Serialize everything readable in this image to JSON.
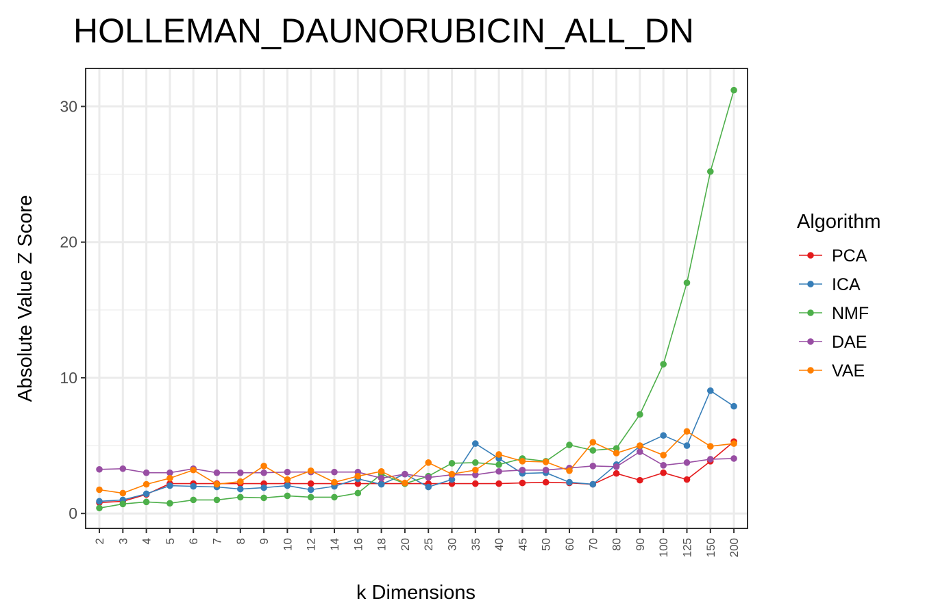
{
  "chart_data": {
    "type": "line",
    "title": "HOLLEMAN_DAUNORUBICIN_ALL_DN",
    "xlabel": "k Dimensions",
    "ylabel": "Absolute Value Z Score",
    "categories": [
      "2",
      "3",
      "4",
      "5",
      "6",
      "7",
      "8",
      "9",
      "10",
      "12",
      "14",
      "16",
      "18",
      "20",
      "25",
      "30",
      "35",
      "40",
      "45",
      "50",
      "60",
      "70",
      "80",
      "90",
      "100",
      "125",
      "150",
      "200"
    ],
    "y_ticks": [
      0,
      10,
      20,
      30
    ],
    "y_tick_labels": [
      "0",
      "10",
      "20",
      "30"
    ],
    "ylim": [
      -1.1,
      32.8
    ],
    "grid": true,
    "legend": {
      "title": "Algorithm",
      "position": "right"
    },
    "series": [
      {
        "name": "PCA",
        "color": "#e41a1c",
        "values": [
          0.8,
          0.9,
          1.4,
          2.2,
          2.2,
          2.2,
          2.2,
          2.2,
          2.2,
          2.2,
          2.2,
          2.2,
          2.2,
          2.2,
          2.2,
          2.2,
          2.2,
          2.2,
          2.25,
          2.3,
          2.25,
          2.15,
          2.95,
          2.45,
          3.0,
          2.5,
          3.85,
          5.3
        ]
      },
      {
        "name": "ICA",
        "color": "#377eb8",
        "values": [
          0.9,
          1.0,
          1.45,
          2.05,
          2.0,
          1.95,
          1.8,
          1.9,
          2.05,
          1.75,
          2.0,
          2.55,
          2.15,
          2.9,
          1.95,
          2.5,
          5.15,
          4.05,
          2.95,
          3.0,
          2.3,
          2.15,
          3.6,
          4.95,
          5.75,
          5.0,
          9.05,
          7.9
        ]
      },
      {
        "name": "NMF",
        "color": "#4daf4a",
        "values": [
          0.4,
          0.7,
          0.85,
          0.75,
          1.0,
          1.0,
          1.2,
          1.15,
          1.3,
          1.2,
          1.2,
          1.5,
          2.9,
          2.2,
          2.75,
          3.7,
          3.75,
          3.6,
          4.05,
          3.85,
          5.05,
          4.65,
          4.8,
          7.3,
          11.0,
          17.0,
          25.2,
          31.2
        ]
      },
      {
        "name": "DAE",
        "color": "#984ea3",
        "values": [
          3.25,
          3.3,
          3.0,
          3.0,
          3.3,
          3.0,
          3.0,
          3.0,
          3.05,
          3.05,
          3.05,
          3.05,
          2.6,
          2.9,
          2.65,
          2.85,
          2.85,
          3.1,
          3.2,
          3.2,
          3.35,
          3.5,
          3.45,
          4.55,
          3.55,
          3.75,
          4.0,
          4.05
        ]
      },
      {
        "name": "VAE",
        "color": "#ff7f00",
        "values": [
          1.75,
          1.5,
          2.15,
          2.6,
          3.2,
          2.15,
          2.35,
          3.5,
          2.5,
          3.15,
          2.3,
          2.75,
          3.1,
          2.25,
          3.75,
          2.9,
          3.2,
          4.35,
          3.85,
          3.8,
          3.15,
          5.25,
          4.45,
          5.0,
          4.3,
          6.05,
          4.95,
          5.15
        ]
      }
    ]
  }
}
